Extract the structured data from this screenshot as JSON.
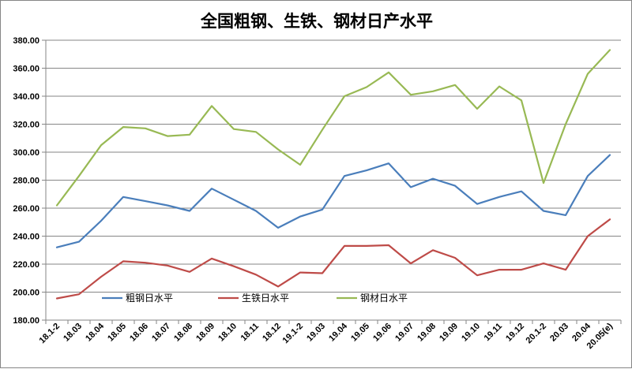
{
  "chart_data": {
    "type": "line",
    "title": "全国粗钢、生铁、钢材日产水平",
    "xlabel": "",
    "ylabel": "",
    "ylim": [
      180,
      380
    ],
    "yticks": [
      "180.00",
      "200.00",
      "220.00",
      "240.00",
      "260.00",
      "280.00",
      "300.00",
      "320.00",
      "340.00",
      "360.00",
      "380.00"
    ],
    "grid": true,
    "legend_position": "inside-bottom-left",
    "categories": [
      "18.1-2",
      "18.03",
      "18.04",
      "18.05",
      "18.06",
      "18.07",
      "18.08",
      "18.09",
      "18.10",
      "18.11",
      "18.12",
      "19.1-2",
      "19.03",
      "19.04",
      "19.05",
      "19.06",
      "19.07",
      "19.08",
      "19.09",
      "19.10",
      "19.11",
      "19.12",
      "20.1-2",
      "20.03",
      "20.04",
      "20.05(e)"
    ],
    "series": [
      {
        "name": "粗钢日水平",
        "color": "#4a7ebb",
        "values": [
          232,
          236,
          251,
          268,
          265,
          262,
          258,
          274,
          266,
          258,
          246,
          254,
          259,
          283,
          287,
          292,
          275,
          281,
          276,
          263,
          268,
          272,
          258,
          255,
          283,
          298
        ]
      },
      {
        "name": "生铁日水平",
        "color": "#be4b48",
        "values": [
          195.5,
          198.5,
          211,
          222,
          221,
          219,
          214.5,
          224,
          218.5,
          212.5,
          204,
          214,
          213.5,
          233,
          233,
          233.5,
          220.5,
          230,
          224.5,
          212,
          216,
          216,
          220.5,
          216,
          240,
          252
        ]
      },
      {
        "name": "钢材日水平",
        "color": "#98b954",
        "values": [
          262,
          283,
          305,
          318,
          317,
          311.5,
          312.5,
          333,
          316.5,
          314.5,
          302,
          291,
          316,
          340,
          346.5,
          357,
          341,
          343.5,
          348,
          331,
          347,
          337,
          278,
          320,
          356,
          373
        ]
      }
    ]
  }
}
